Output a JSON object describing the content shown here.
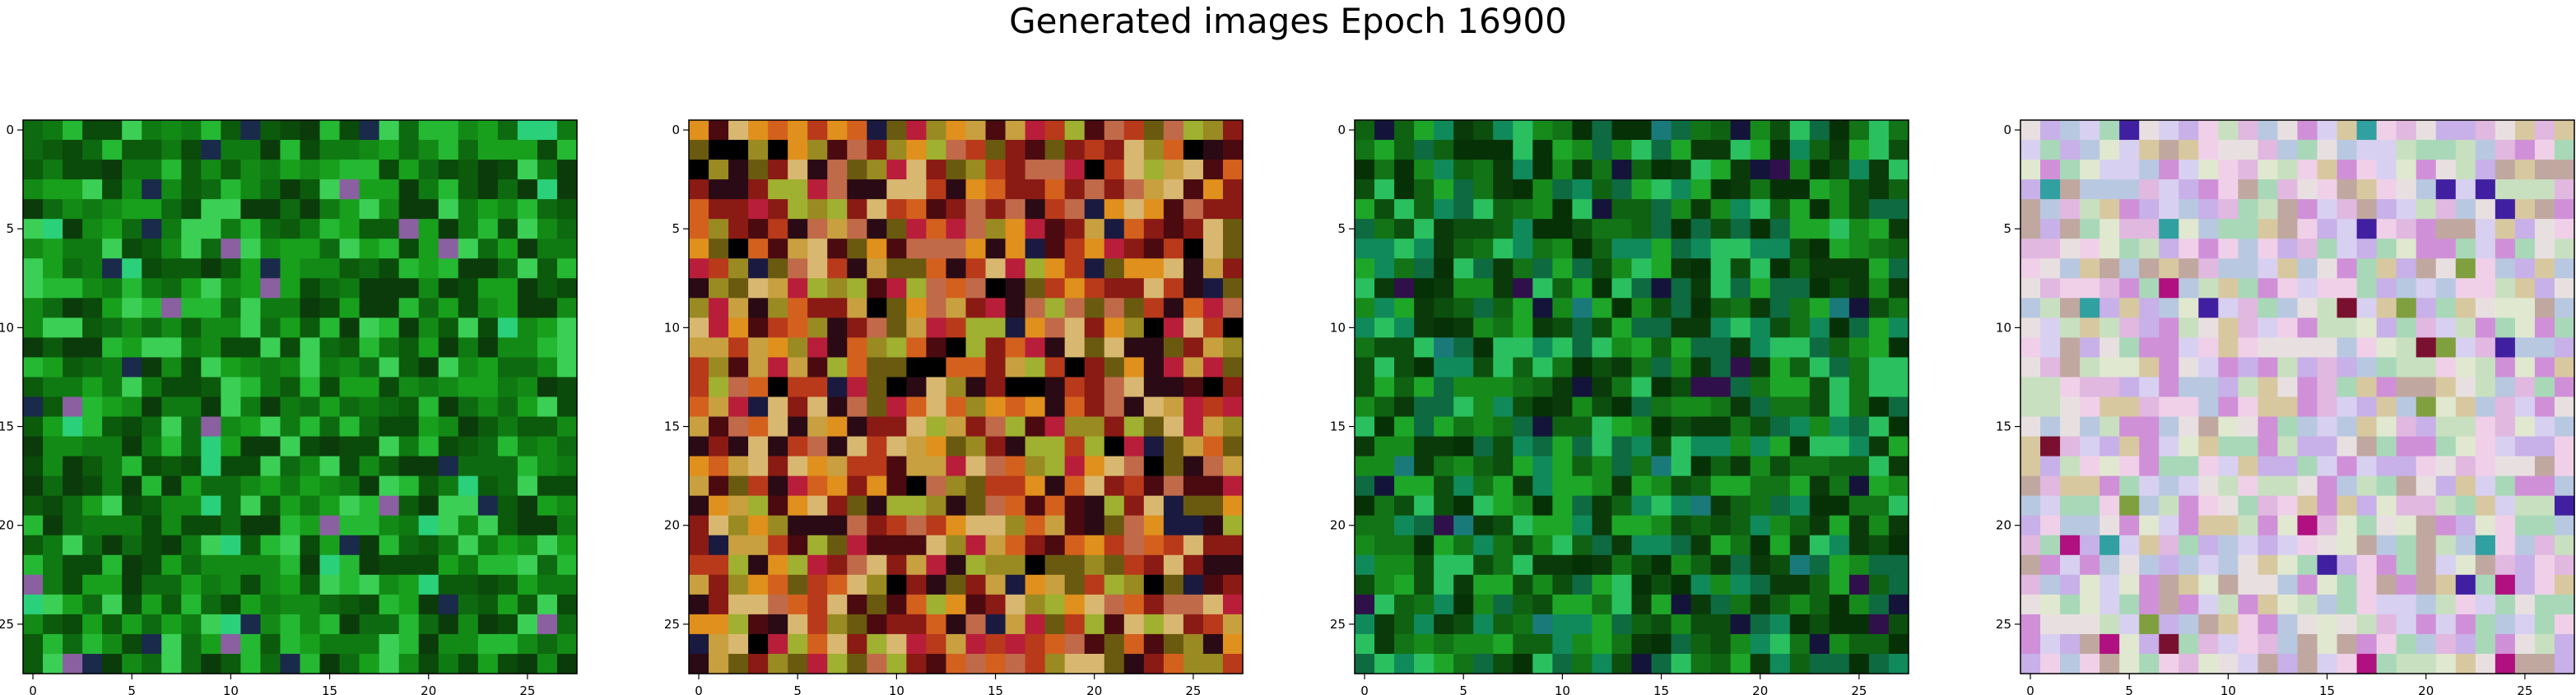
{
  "title": "Generated images Epoch 16900",
  "chart_data": [
    {
      "type": "heatmap",
      "description_palette": "dark and bright greens",
      "palette": [
        "#0a4a0a",
        "#0c5a0c",
        "#0e6a10",
        "#107a12",
        "#138a16",
        "#18a01c",
        "#25b833",
        "#3ccf55",
        "#0b3b0b"
      ],
      "accent_colors": [
        "#1a2a4a",
        "#8a60a0",
        "#2ad07a"
      ],
      "size": [
        28,
        28
      ],
      "xticks": [
        0,
        5,
        10,
        15,
        20,
        25
      ],
      "yticks": [
        0,
        5,
        10,
        15,
        20,
        25
      ],
      "xlim": [
        -0.5,
        27.5
      ],
      "ylim": [
        27.5,
        -0.5
      ],
      "seed": 11
    },
    {
      "type": "heatmap",
      "description_palette": "reds, oranges, olives, dark maroon",
      "palette": [
        "#8a1a14",
        "#b83a1a",
        "#d4601e",
        "#e0901c",
        "#c8a040",
        "#9a8a22",
        "#6a5a10",
        "#4a0a10",
        "#c06a4a",
        "#d8b870",
        "#2a0a14",
        "#b81e3a",
        "#a0b030"
      ],
      "accent_colors": [
        "#1a1a40",
        "#000000"
      ],
      "size": [
        28,
        28
      ],
      "xticks": [
        0,
        5,
        10,
        15,
        20,
        25
      ],
      "yticks": [
        0,
        5,
        10,
        15,
        20,
        25
      ],
      "xlim": [
        -0.5,
        27.5
      ],
      "ylim": [
        27.5,
        -0.5
      ],
      "seed": 23
    },
    {
      "type": "heatmap",
      "description_palette": "dark greens with teal",
      "palette": [
        "#0a3a0a",
        "#0c4e0e",
        "#0f6212",
        "#127416",
        "#178a1c",
        "#1ea628",
        "#0e6a40",
        "#108a5a",
        "#2ac060",
        "#063006"
      ],
      "accent_colors": [
        "#14143a",
        "#30104a",
        "#1a7a7a"
      ],
      "size": [
        28,
        28
      ],
      "xticks": [
        0,
        5,
        10,
        15,
        20,
        25
      ],
      "yticks": [
        0,
        5,
        10,
        15,
        20,
        25
      ],
      "xlim": [
        -0.5,
        27.5
      ],
      "ylim": [
        27.5,
        -0.5
      ],
      "seed": 37
    },
    {
      "type": "heatmap",
      "description_palette": "pastel pinks, lavenders, light greens, creams",
      "palette": [
        "#e0b8e0",
        "#c8b0e8",
        "#d8d0f0",
        "#e8e0e0",
        "#c8e0c0",
        "#a8d8b8",
        "#d8c8a0",
        "#f0d0e8",
        "#b8c8e0",
        "#e0e8d0",
        "#d090d8",
        "#c0a8a0"
      ],
      "accent_colors": [
        "#b01080",
        "#4020a0",
        "#7a1030",
        "#30a0a0",
        "#80a040"
      ],
      "size": [
        28,
        28
      ],
      "xticks": [
        0,
        5,
        10,
        15,
        20,
        25
      ],
      "yticks": [
        0,
        5,
        10,
        15,
        20,
        25
      ],
      "xlim": [
        -0.5,
        27.5
      ],
      "ylim": [
        27.5,
        -0.5
      ],
      "seed": 53
    }
  ]
}
